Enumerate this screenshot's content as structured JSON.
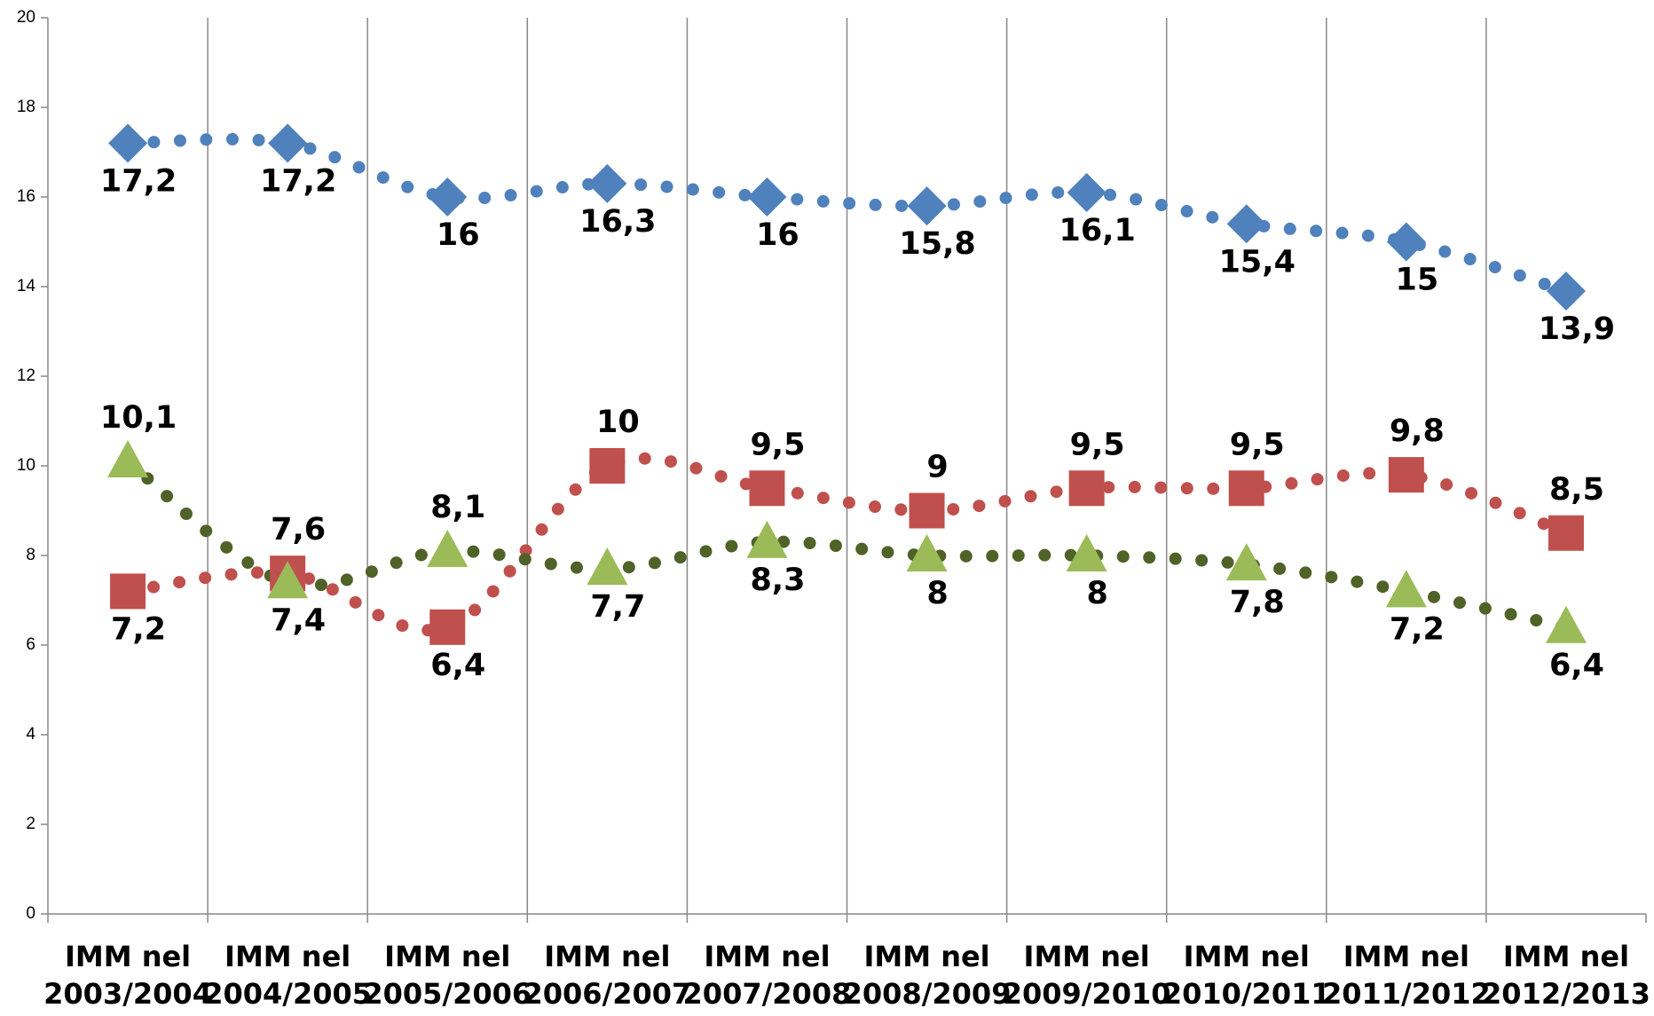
{
  "chart_data": {
    "type": "line",
    "categories": [
      "IMM nel 2003/2004",
      "IMM nel 2004/2005",
      "IMM nel 2005/2006",
      "IMM nel 2006/2007",
      "IMM nel 2007/2008",
      "IMM nel 2008/2009",
      "IMM nel 2009/2010",
      "IMM nel 2010/2011",
      "IMM nel 2011/2012",
      "IMM nel 2012/2013"
    ],
    "series": [
      {
        "color": "#4f81bd",
        "marker": "diamond",
        "values": [
          17.2,
          17.2,
          16,
          16.3,
          16,
          15.8,
          16.1,
          15.4,
          15,
          13.9
        ],
        "value_labels": [
          "17,2",
          "17,2",
          "16",
          "16,3",
          "16",
          "15,8",
          "16,1",
          "15,4",
          "15",
          "13,9"
        ]
      },
      {
        "color": "#c0504d",
        "marker": "square",
        "values": [
          7.2,
          7.6,
          6.4,
          10,
          9.5,
          9,
          9.5,
          9.5,
          9.8,
          8.5
        ],
        "value_labels": [
          "7,2",
          "7,6",
          "6,4",
          "10",
          "9,5",
          "9",
          "9,5",
          "9,5",
          "9,8",
          "8,5"
        ]
      },
      {
        "color": "#9bbb59",
        "line_color": "#4f6228",
        "marker": "triangle",
        "values": [
          10.1,
          7.4,
          8.1,
          7.7,
          8.3,
          8,
          8,
          7.8,
          7.2,
          6.4
        ],
        "value_labels": [
          "10,1",
          "7,4",
          "8,1",
          "7,7",
          "8,3",
          "8",
          "8",
          "7,8",
          "7,2",
          "6,4"
        ]
      }
    ],
    "ylim": [
      0,
      20
    ],
    "yticks": [
      0,
      2,
      4,
      6,
      8,
      10,
      12,
      14,
      16,
      18,
      20
    ],
    "grid": "vertical-category"
  }
}
